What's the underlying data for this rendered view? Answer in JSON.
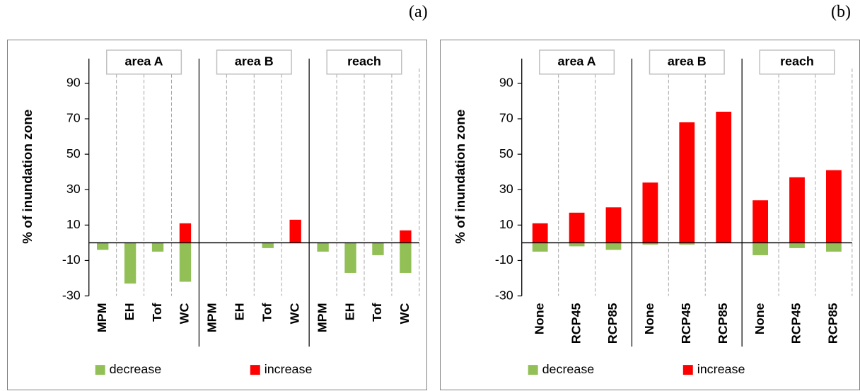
{
  "figure": {
    "panel_a_label": "(a)",
    "panel_b_label": "(b)"
  },
  "colors": {
    "decrease": "#92c056",
    "increase": "#ff0000",
    "axis": "#000000",
    "grid_dash": "#a6a6a6",
    "box_border": "#bfbfbf"
  },
  "chart_data": [
    {
      "type": "bar",
      "stacked": "diverging",
      "panel_label": "(a)",
      "ylabel": "% of inundation zone",
      "yticks": [
        90,
        70,
        50,
        30,
        10,
        -10,
        -30
      ],
      "ylim": [
        -30,
        100
      ],
      "groups": [
        "area A",
        "area B",
        "reach"
      ],
      "categories": [
        "MPM",
        "EH",
        "Tof",
        "WC"
      ],
      "series": [
        {
          "name": "decrease",
          "color": "#92c056",
          "values": [
            [
              -4,
              -23,
              -5,
              -22
            ],
            [
              0,
              0,
              -3,
              0
            ],
            [
              -5,
              -17,
              -7,
              -17
            ]
          ]
        },
        {
          "name": "increase",
          "color": "#ff0000",
          "values": [
            [
              0,
              0,
              0,
              11
            ],
            [
              0,
              0,
              0,
              13
            ],
            [
              0,
              0,
              0,
              7
            ]
          ]
        }
      ],
      "legend_position": "bottom",
      "grid": false
    },
    {
      "type": "bar",
      "stacked": "diverging",
      "panel_label": "(b)",
      "ylabel": "% of inundation zone",
      "yticks": [
        90,
        70,
        50,
        30,
        10,
        -10,
        -30
      ],
      "ylim": [
        -30,
        100
      ],
      "groups": [
        "area A",
        "area B",
        "reach"
      ],
      "categories": [
        "None",
        "RCP45",
        "RCP85"
      ],
      "series": [
        {
          "name": "decrease",
          "color": "#92c056",
          "values": [
            [
              -5,
              -2,
              -4
            ],
            [
              -1,
              -1,
              0
            ],
            [
              -7,
              -3,
              -5
            ]
          ]
        },
        {
          "name": "increase",
          "color": "#ff0000",
          "values": [
            [
              11,
              17,
              20
            ],
            [
              34,
              68,
              74
            ],
            [
              24,
              37,
              41
            ]
          ]
        }
      ],
      "legend_position": "bottom",
      "grid": false
    }
  ]
}
